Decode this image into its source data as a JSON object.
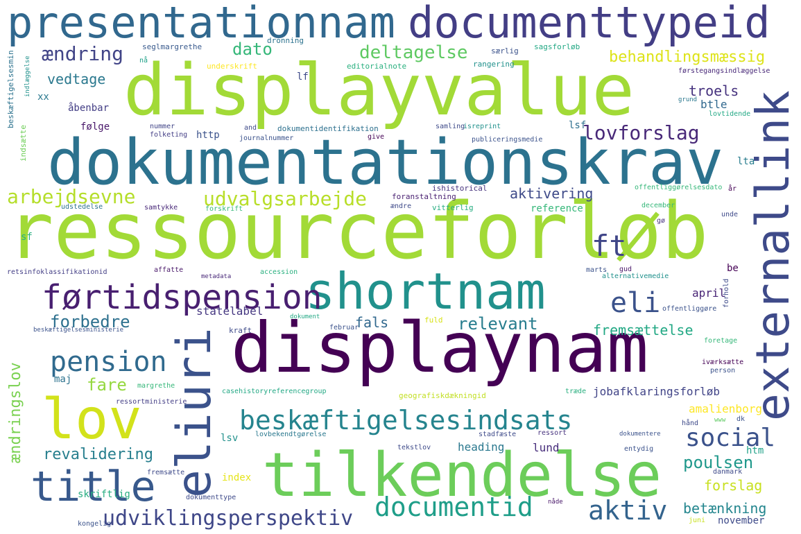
{
  "words": [
    {
      "text": "ressourceforløb",
      "color": "#a2da37"
    },
    {
      "text": "displayvalue",
      "color": "#a2da37"
    },
    {
      "text": "dokumentationskrav",
      "color": "#2c728e"
    },
    {
      "text": "presentationnam",
      "color": "#31688e"
    },
    {
      "text": "documenttypeid",
      "color": "#433e85"
    },
    {
      "text": "displaynam",
      "color": "#440154"
    },
    {
      "text": "tilkendelse",
      "color": "#6ccd5a"
    },
    {
      "text": "shortnam",
      "color": "#21918c"
    },
    {
      "text": "externallink",
      "color": "#3e4a89"
    },
    {
      "text": "eliuri",
      "color": "#3b528b"
    },
    {
      "text": "lov",
      "color": "#d2e21b"
    },
    {
      "text": "title",
      "color": "#38598c"
    },
    {
      "text": "førtidspension",
      "color": "#481f70"
    },
    {
      "text": "beskæftigelsesindsats",
      "color": "#25848e"
    },
    {
      "text": "documentid",
      "color": "#1f9e89"
    },
    {
      "text": "udviklingsperspektiv",
      "color": "#3f4788"
    },
    {
      "text": "aktiv",
      "color": "#33638d"
    },
    {
      "text": "social",
      "color": "#3b528b"
    },
    {
      "text": "pension",
      "color": "#306a8e"
    },
    {
      "text": "eli",
      "color": "#3b528b"
    },
    {
      "text": "ft",
      "color": "#404688"
    },
    {
      "text": "lovforslag",
      "color": "#482878"
    },
    {
      "text": "arbejdsevne",
      "color": "#b5de2b"
    },
    {
      "text": "udvalgsarbejde",
      "color": "#b8de29"
    },
    {
      "text": "deltagelse",
      "color": "#5ec962"
    },
    {
      "text": "behandlingsmæssig",
      "color": "#dde318"
    },
    {
      "text": "ændring",
      "color": "#414487"
    },
    {
      "text": "dato",
      "color": "#35b779"
    },
    {
      "text": "vedtage",
      "color": "#2a788e"
    },
    {
      "text": "troels",
      "color": "#46327e"
    },
    {
      "text": "btle",
      "color": "#31688e"
    },
    {
      "text": "forbedre",
      "color": "#2d708e"
    },
    {
      "text": "relevant",
      "color": "#287d8e"
    },
    {
      "text": "fremsættelse",
      "color": "#22a884"
    },
    {
      "text": "fare",
      "color": "#95d840"
    },
    {
      "text": "fals",
      "color": "#31688e"
    },
    {
      "text": "revalidering",
      "color": "#277f8e"
    },
    {
      "text": "poulsen",
      "color": "#1f988b"
    },
    {
      "text": "forslag",
      "color": "#c8e020"
    },
    {
      "text": "betænkning",
      "color": "#24868e"
    },
    {
      "text": "ændringslov",
      "color": "#7ad151"
    },
    {
      "text": "aktivering",
      "color": "#3e4a89"
    },
    {
      "text": "reference",
      "color": "#35b779"
    },
    {
      "text": "statelabel",
      "color": "#453781"
    },
    {
      "text": "april",
      "color": "#482475"
    },
    {
      "text": "jobafklaringsforløb",
      "color": "#414487"
    },
    {
      "text": "amalienborg",
      "color": "#fde725"
    },
    {
      "text": "heading",
      "color": "#2a788e"
    },
    {
      "text": "lund",
      "color": "#472d7b"
    },
    {
      "text": "lsv",
      "color": "#21918c"
    },
    {
      "text": "index",
      "color": "#e5e419"
    },
    {
      "text": "htm",
      "color": "#1fa188"
    },
    {
      "text": "november",
      "color": "#3e4a89"
    },
    {
      "text": "skriftlig",
      "color": "#27ad81"
    },
    {
      "text": "lsf",
      "color": "#2e6f8e"
    },
    {
      "text": "følge",
      "color": "#481769"
    },
    {
      "text": "http",
      "color": "#3b528b"
    },
    {
      "text": "lf",
      "color": "#3e4a89"
    },
    {
      "text": "åbenbar",
      "color": "#433e85"
    },
    {
      "text": "xx",
      "color": "#2a788e"
    },
    {
      "text": "be",
      "color": "#440154"
    },
    {
      "text": "lta",
      "color": "#287d8e"
    },
    {
      "text": "maj",
      "color": "#2c728e"
    },
    {
      "text": "sf",
      "color": "#29af7f"
    },
    {
      "text": "grund",
      "color": "#2a788e"
    },
    {
      "text": "forhold",
      "color": "#3e4a89"
    },
    {
      "text": "beskæftigelsesmin",
      "color": "#2c728e"
    },
    {
      "text": "indsætte",
      "color": "#6ece58"
    },
    {
      "text": "indlæggelse",
      "color": "#21918c"
    },
    {
      "text": "beskæftigelsesministerie",
      "color": "#3b528b"
    },
    {
      "text": "seglmargrethe",
      "color": "#38598c"
    },
    {
      "text": "dronning",
      "color": "#2c728e"
    },
    {
      "text": "særlig",
      "color": "#3b528b"
    },
    {
      "text": "sagsforløb",
      "color": "#22a884"
    },
    {
      "text": "nå",
      "color": "#1fa188"
    },
    {
      "text": "underskrift",
      "color": "#fde725"
    },
    {
      "text": "editorialnote",
      "color": "#2ab07f"
    },
    {
      "text": "rangering",
      "color": "#21918c"
    },
    {
      "text": "førstegangsindlæggelse",
      "color": "#482878"
    },
    {
      "text": "nummer",
      "color": "#414487"
    },
    {
      "text": "folketing",
      "color": "#433e85"
    },
    {
      "text": "and",
      "color": "#3e4a89"
    },
    {
      "text": "journalnummer",
      "color": "#3b528b"
    },
    {
      "text": "dokumentidentifikation",
      "color": "#2d708e"
    },
    {
      "text": "give",
      "color": "#440154"
    },
    {
      "text": "samling",
      "color": "#3e4a89"
    },
    {
      "text": "isreprint",
      "color": "#21918c"
    },
    {
      "text": "publiceringsmedie",
      "color": "#3b528b"
    },
    {
      "text": "lovtidende",
      "color": "#22a884"
    },
    {
      "text": "år",
      "color": "#440154"
    },
    {
      "text": "ishistorical",
      "color": "#46327e"
    },
    {
      "text": "foranstaltning",
      "color": "#481f70"
    },
    {
      "text": "udstedelse",
      "color": "#2c728e"
    },
    {
      "text": "samtykke",
      "color": "#482878"
    },
    {
      "text": "forskrift",
      "color": "#35b779"
    },
    {
      "text": "ændre",
      "color": "#3e4a89"
    },
    {
      "text": "vitterlig",
      "color": "#27ad81"
    },
    {
      "text": "offentliggørelsesdato",
      "color": "#35b779"
    },
    {
      "text": "unde",
      "color": "#3e4a89"
    },
    {
      "text": "december",
      "color": "#35b779"
    },
    {
      "text": "gø",
      "color": "#46327e"
    },
    {
      "text": "retsinfoklassifikationid",
      "color": "#433e85"
    },
    {
      "text": "affatte",
      "color": "#481769"
    },
    {
      "text": "metadata",
      "color": "#482878"
    },
    {
      "text": "accession",
      "color": "#2ab07f"
    },
    {
      "text": "marts",
      "color": "#3b528b"
    },
    {
      "text": "gud",
      "color": "#481769"
    },
    {
      "text": "alternativemedie",
      "color": "#21918c"
    },
    {
      "text": "offentliggøre",
      "color": "#3b528b"
    },
    {
      "text": "dokument",
      "color": "#22a884"
    },
    {
      "text": "fuld",
      "color": "#d8e219"
    },
    {
      "text": "kraft",
      "color": "#3e4a89"
    },
    {
      "text": "februar",
      "color": "#3b528b"
    },
    {
      "text": "foretage",
      "color": "#35b779"
    },
    {
      "text": "iværksætte",
      "color": "#440154"
    },
    {
      "text": "person",
      "color": "#3b528b"
    },
    {
      "text": "margrethe",
      "color": "#35b779"
    },
    {
      "text": "ressortministerie",
      "color": "#433e85"
    },
    {
      "text": "casehistoryreferencegroup",
      "color": "#22a884"
    },
    {
      "text": "geografiskdækningid",
      "color": "#c2df23"
    },
    {
      "text": "træde",
      "color": "#29af7f"
    },
    {
      "text": "lovbekendtgørelse",
      "color": "#2a788e"
    },
    {
      "text": "stadfæste",
      "color": "#3e4a89"
    },
    {
      "text": "ressort",
      "color": "#46327e"
    },
    {
      "text": "dokumentere",
      "color": "#3b528b"
    },
    {
      "text": "hånd",
      "color": "#3e4a89"
    },
    {
      "text": "www",
      "color": "#5ec962"
    },
    {
      "text": "dk",
      "color": "#3b528b"
    },
    {
      "text": "tekstlov",
      "color": "#3e4a89"
    },
    {
      "text": "entydig",
      "color": "#3b528b"
    },
    {
      "text": "danmark",
      "color": "#3e4a89"
    },
    {
      "text": "fremsætte",
      "color": "#3e4a89"
    },
    {
      "text": "dokumenttype",
      "color": "#3e4a89"
    },
    {
      "text": "nåde",
      "color": "#481769"
    },
    {
      "text": "kongelig",
      "color": "#3b528b"
    },
    {
      "text": "juni",
      "color": "#c8e020"
    }
  ]
}
